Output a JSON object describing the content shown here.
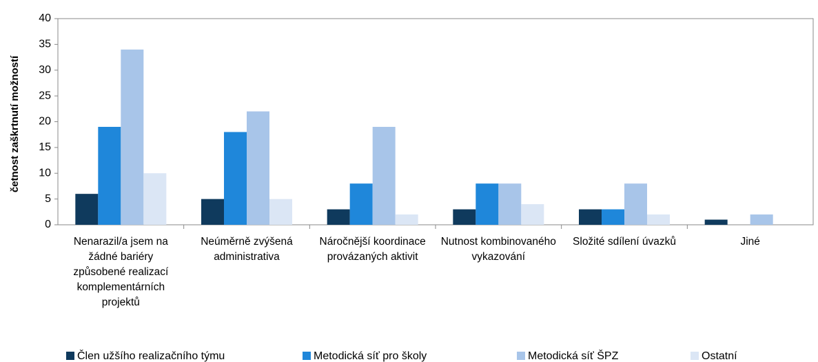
{
  "chart_data": {
    "type": "bar",
    "y_label": "četnost zaškrtnutí možností",
    "categories": [
      "Nenarazil/a jsem na žádné bariéry způsobené realizací komplementárních projektů",
      "Neúměrně zvýšená administrativa",
      "Náročnější koordinace provázaných aktivit",
      "Nutnost kombinovaného vykazování",
      "Složité sdílení úvazků",
      "Jiné"
    ],
    "series": [
      {
        "name": "Člen užšího realizačního týmu",
        "color": "#0f3a5d",
        "values": [
          6,
          5,
          3,
          3,
          3,
          1
        ]
      },
      {
        "name": "Metodická síť pro školy",
        "color": "#1f87da",
        "values": [
          19,
          18,
          8,
          8,
          3,
          0
        ]
      },
      {
        "name": "Metodická síť ŠPZ",
        "color": "#a8c5e9",
        "values": [
          34,
          22,
          19,
          8,
          8,
          2
        ]
      },
      {
        "name": "Ostatní",
        "color": "#dbe6f5",
        "values": [
          10,
          5,
          2,
          4,
          2,
          0
        ]
      }
    ],
    "ylim": [
      0,
      40
    ],
    "yticks": [
      0,
      5,
      10,
      15,
      20,
      25,
      30,
      35,
      40
    ],
    "grid": false,
    "legend": "bottom"
  }
}
